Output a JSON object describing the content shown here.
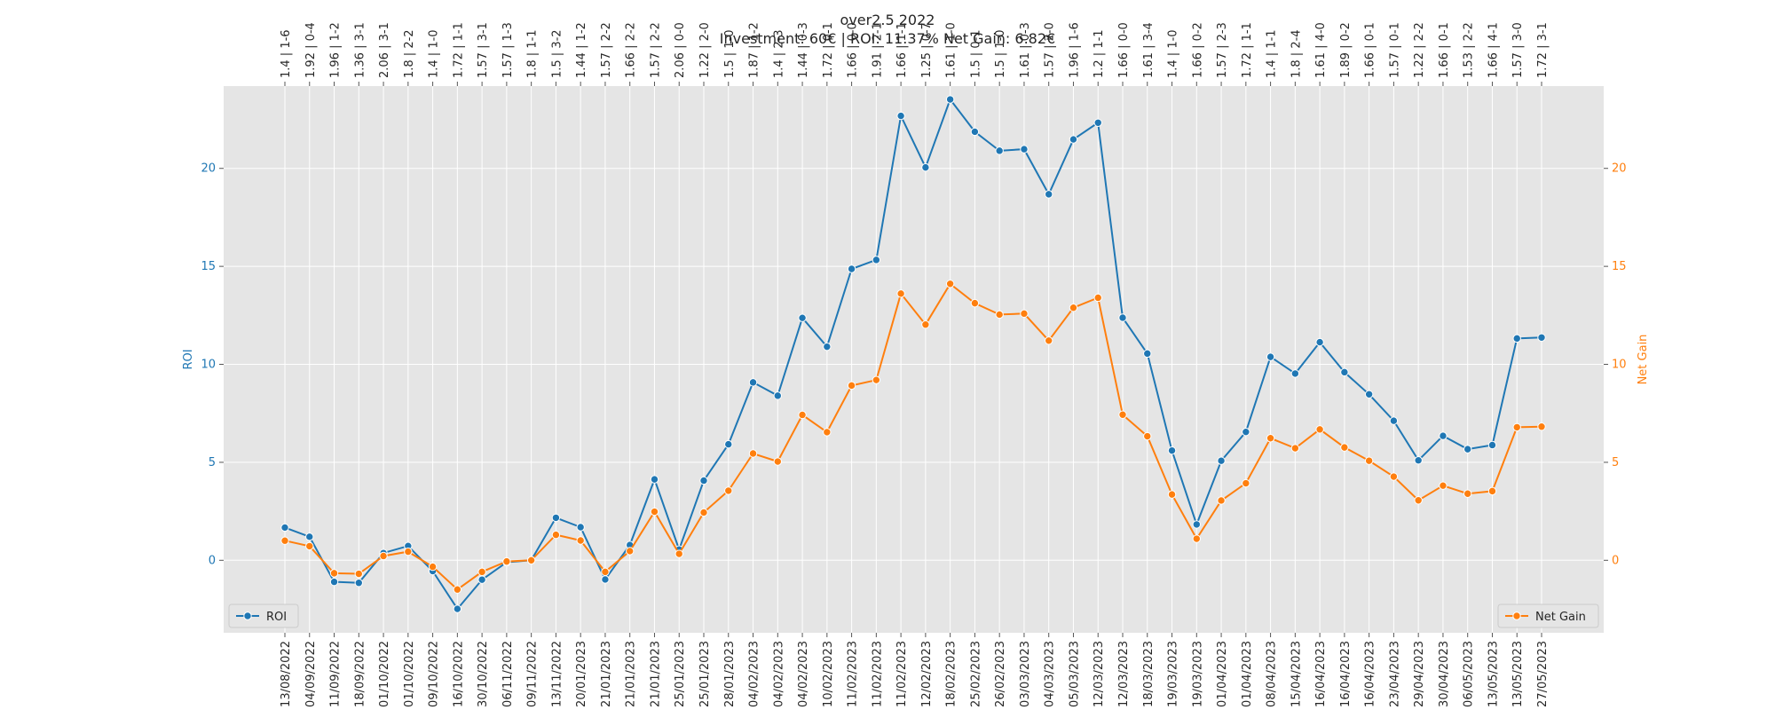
{
  "chart_data": {
    "type": "line",
    "title": "over2.5 2022",
    "subtitle": "Investment: 60€ | ROI: 11.37% Net Gain: 6.82€",
    "ylabel": "ROI",
    "y2label": "Net Gain",
    "ylim": [
      -3.7,
      24.2
    ],
    "y2lim": [
      -3.7,
      24.2
    ],
    "yticks": [
      0,
      5,
      10,
      15,
      20
    ],
    "y2ticks": [
      0,
      5,
      10,
      15,
      20
    ],
    "grid": true,
    "colors": {
      "roi": "#1f77b4",
      "net_gain": "#ff7f0e",
      "plot_bg": "#e5e5e5",
      "grid": "#ffffff"
    },
    "legend": [
      {
        "name": "ROI",
        "placement": "lower-left"
      },
      {
        "name": "Net Gain",
        "placement": "lower-right"
      }
    ],
    "x": [
      "13/08/2022",
      "04/09/2022",
      "11/09/2022",
      "18/09/2022",
      "01/10/2022",
      "01/10/2022",
      "09/10/2022",
      "16/10/2022",
      "30/10/2022",
      "06/11/2022",
      "09/11/2022",
      "13/11/2022",
      "20/01/2023",
      "21/01/2023",
      "21/01/2023",
      "21/01/2023",
      "25/01/2023",
      "25/01/2023",
      "28/01/2023",
      "04/02/2023",
      "04/02/2023",
      "04/02/2023",
      "10/02/2023",
      "11/02/2023",
      "11/02/2023",
      "11/02/2023",
      "12/02/2023",
      "18/02/2023",
      "25/02/2023",
      "26/02/2023",
      "03/03/2023",
      "04/03/2023",
      "05/03/2023",
      "12/03/2023",
      "12/03/2023",
      "18/03/2023",
      "19/03/2023",
      "19/03/2023",
      "01/04/2023",
      "01/04/2023",
      "08/04/2023",
      "15/04/2023",
      "16/04/2023",
      "16/04/2023",
      "16/04/2023",
      "23/04/2023",
      "29/04/2023",
      "30/04/2023",
      "06/05/2023",
      "13/05/2023",
      "13/05/2023",
      "27/05/2023"
    ],
    "top_labels": [
      "1.4 | 1-6",
      "1.92 | 0-4",
      "1.96 | 1-2",
      "1.36 | 3-1",
      "2.06 | 3-1",
      "1.8 | 2-2",
      "1.4 | 1-0",
      "1.72 | 1-1",
      "1.57 | 3-1",
      "1.57 | 1-3",
      "1.8 | 1-1",
      "1.5 | 3-2",
      "1.44 | 1-2",
      "1.57 | 2-2",
      "1.66 | 2-2",
      "1.57 | 2-2",
      "2.06 | 0-0",
      "1.22 | 2-0",
      "1.5 | 1-0",
      "1.87 | 1-2",
      "1.4 | 2-3",
      "1.44 | 0-3",
      "1.72 | 0-1",
      "1.66 | 0-0",
      "1.91 | 2-1",
      "1.66 | 1-1",
      "1.25 | 0-7",
      "1.61 | 1-0",
      "1.5 | 0-1",
      "1.5 | 1-0",
      "1.61 | 0-3",
      "1.57 | 2-0",
      "1.96 | 1-6",
      "1.2 | 1-1",
      "1.66 | 0-0",
      "1.61 | 3-4",
      "1.4 | 1-0",
      "1.66 | 0-2",
      "1.57 | 2-3",
      "1.72 | 1-1",
      "1.4 | 1-1",
      "1.8 | 2-4",
      "1.61 | 4-0",
      "1.89 | 0-2",
      "1.66 | 0-1",
      "1.57 | 0-1",
      "1.22 | 2-2",
      "1.66 | 0-1",
      "1.53 | 2-2",
      "1.66 | 4-1",
      "1.57 | 3-0",
      "1.72 | 3-1"
    ],
    "series": [
      {
        "name": "ROI",
        "axis": "left",
        "values": [
          1.67,
          1.2,
          -1.1,
          -1.15,
          0.37,
          0.73,
          -0.55,
          -2.48,
          -0.99,
          -0.1,
          0.0,
          2.17,
          1.69,
          -0.98,
          0.78,
          4.13,
          0.55,
          4.07,
          5.92,
          9.08,
          8.4,
          12.37,
          10.9,
          14.87,
          15.33,
          22.68,
          20.05,
          23.52,
          21.87,
          20.9,
          20.98,
          18.68,
          21.48,
          22.33,
          12.38,
          10.55,
          5.6,
          1.83,
          5.08,
          6.55,
          10.38,
          9.53,
          11.13,
          9.6,
          8.47,
          7.12,
          5.1,
          6.35,
          5.67,
          5.88,
          11.32,
          11.37
        ]
      },
      {
        "name": "Net Gain",
        "axis": "right",
        "values": [
          1.0,
          0.72,
          -0.66,
          -0.69,
          0.22,
          0.44,
          -0.33,
          -1.49,
          -0.59,
          -0.06,
          0.0,
          1.3,
          1.01,
          -0.59,
          0.47,
          2.48,
          0.33,
          2.44,
          3.55,
          5.45,
          5.04,
          7.42,
          6.54,
          8.92,
          9.2,
          13.61,
          12.03,
          14.11,
          13.12,
          12.54,
          12.59,
          11.21,
          12.89,
          13.4,
          7.43,
          6.33,
          3.36,
          1.1,
          3.05,
          3.93,
          6.23,
          5.72,
          6.68,
          5.76,
          5.08,
          4.27,
          3.06,
          3.81,
          3.4,
          3.53,
          6.79,
          6.82
        ]
      }
    ]
  }
}
